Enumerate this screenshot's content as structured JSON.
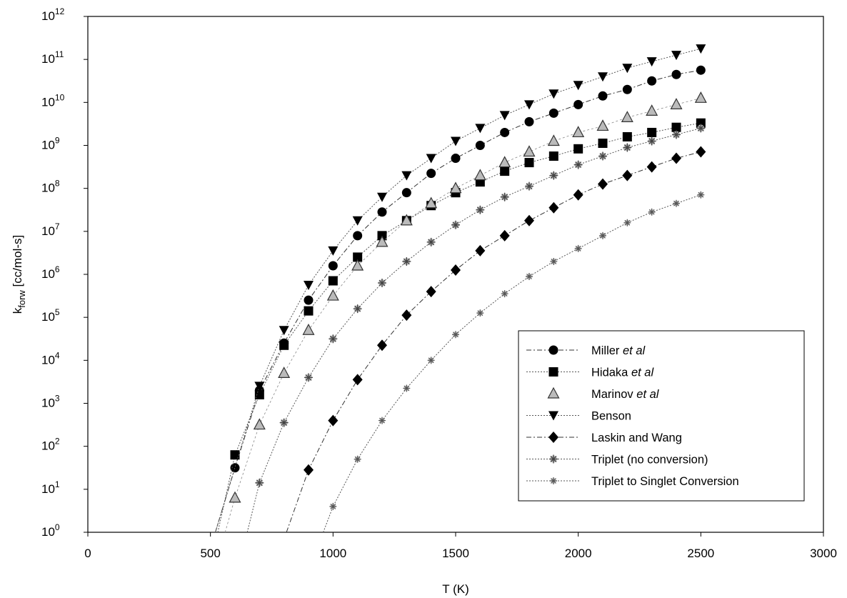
{
  "chart_data": {
    "type": "scatter",
    "title": "",
    "xlabel": "T (K)",
    "ylabel": {
      "main": "k",
      "sub": "forw",
      "unit": "[cc/mol-s]"
    },
    "xlim": [
      0,
      3000
    ],
    "ylim_log10": [
      0,
      12
    ],
    "y_scale": "log",
    "x_ticks": [
      "0",
      "500",
      "1000",
      "1500",
      "2000",
      "2500",
      "3000"
    ],
    "x_tick_values": [
      0,
      500,
      1000,
      1500,
      2000,
      2500,
      3000
    ],
    "y_ticks": [
      {
        "base": "10",
        "exp": "0"
      },
      {
        "base": "10",
        "exp": "1"
      },
      {
        "base": "10",
        "exp": "2"
      },
      {
        "base": "10",
        "exp": "3"
      },
      {
        "base": "10",
        "exp": "4"
      },
      {
        "base": "10",
        "exp": "5"
      },
      {
        "base": "10",
        "exp": "6"
      },
      {
        "base": "10",
        "exp": "7"
      },
      {
        "base": "10",
        "exp": "8"
      },
      {
        "base": "10",
        "exp": "9"
      },
      {
        "base": "10",
        "exp": "10"
      },
      {
        "base": "10",
        "exp": "11"
      },
      {
        "base": "10",
        "exp": "12"
      }
    ],
    "grid": false,
    "legend_position": "bottom-right",
    "series": [
      {
        "name": "Miller et al",
        "name_plain": "Miller ",
        "name_italic": "et al",
        "marker": "circle",
        "color": "#000000",
        "line": "dashdot",
        "curve_start_x": 520,
        "x": [
          600,
          700,
          800,
          900,
          1000,
          1100,
          1200,
          1300,
          1400,
          1500,
          1600,
          1700,
          1800,
          1900,
          2000,
          2100,
          2200,
          2300,
          2400,
          2500
        ],
        "log10_y": [
          1.5,
          3.3,
          4.4,
          5.4,
          6.2,
          6.9,
          7.45,
          7.9,
          8.35,
          8.7,
          9.0,
          9.3,
          9.55,
          9.75,
          9.95,
          10.15,
          10.3,
          10.5,
          10.65,
          10.75
        ]
      },
      {
        "name": "Hidaka et al",
        "name_plain": "Hidaka ",
        "name_italic": "et al",
        "marker": "square",
        "color": "#000000",
        "line": "dotted",
        "curve_start_x": 530,
        "x": [
          600,
          700,
          800,
          900,
          1000,
          1100,
          1200,
          1300,
          1400,
          1500,
          1600,
          1700,
          1800,
          1900,
          2000,
          2100,
          2200,
          2300,
          2400,
          2500
        ],
        "log10_y": [
          1.8,
          3.2,
          4.35,
          5.15,
          5.85,
          6.4,
          6.9,
          7.25,
          7.6,
          7.9,
          8.15,
          8.4,
          8.6,
          8.75,
          8.92,
          9.05,
          9.2,
          9.3,
          9.42,
          9.52
        ]
      },
      {
        "name": "Marinov et al",
        "name_plain": "Marinov ",
        "name_italic": "et al",
        "marker": "triangle-up",
        "color": "#777777",
        "line": "none",
        "curve_start_x": 560,
        "x": [
          600,
          700,
          800,
          900,
          1000,
          1100,
          1200,
          1300,
          1400,
          1500,
          1600,
          1700,
          1800,
          1900,
          2000,
          2100,
          2200,
          2300,
          2400,
          2500
        ],
        "log10_y": [
          0.8,
          2.5,
          3.7,
          4.7,
          5.5,
          6.2,
          6.75,
          7.25,
          7.65,
          8.0,
          8.3,
          8.6,
          8.85,
          9.1,
          9.3,
          9.45,
          9.65,
          9.8,
          9.95,
          10.1
        ]
      },
      {
        "name": "Benson",
        "marker": "triangle-down",
        "color": "#000000",
        "line": "dotted",
        "curve_start_x": 520,
        "x": [
          700,
          800,
          900,
          1000,
          1100,
          1200,
          1300,
          1400,
          1500,
          1600,
          1700,
          1800,
          1900,
          2000,
          2100,
          2200,
          2300,
          2400,
          2500
        ],
        "log10_y": [
          3.4,
          4.7,
          5.75,
          6.55,
          7.25,
          7.8,
          8.3,
          8.7,
          9.1,
          9.4,
          9.7,
          9.95,
          10.2,
          10.4,
          10.6,
          10.8,
          10.95,
          11.1,
          11.25
        ]
      },
      {
        "name": "Laskin and Wang",
        "marker": "diamond",
        "color": "#000000",
        "line": "dashdot",
        "curve_start_x": 810,
        "x": [
          900,
          1000,
          1100,
          1200,
          1300,
          1400,
          1500,
          1600,
          1700,
          1800,
          1900,
          2000,
          2100,
          2200,
          2300,
          2400,
          2500
        ],
        "log10_y": [
          1.45,
          2.6,
          3.55,
          4.35,
          5.05,
          5.6,
          6.1,
          6.55,
          6.9,
          7.25,
          7.55,
          7.85,
          8.1,
          8.3,
          8.5,
          8.7,
          8.85
        ]
      },
      {
        "name": "Triplet (no conversion)",
        "marker": "sparkle",
        "color": "#888888",
        "line": "dotted",
        "curve_start_x": 650,
        "x": [
          700,
          800,
          900,
          1000,
          1100,
          1200,
          1300,
          1400,
          1500,
          1600,
          1700,
          1800,
          1900,
          2000,
          2100,
          2200,
          2300,
          2400,
          2500
        ],
        "log10_y": [
          1.15,
          2.55,
          3.6,
          4.5,
          5.2,
          5.8,
          6.3,
          6.75,
          7.15,
          7.5,
          7.8,
          8.05,
          8.3,
          8.55,
          8.75,
          8.95,
          9.1,
          9.25,
          9.4
        ]
      },
      {
        "name": "Triplet to Singlet Conversion",
        "marker": "sparkle-small",
        "color": "#999999",
        "line": "dotted",
        "curve_start_x": 960,
        "x": [
          1000,
          1100,
          1200,
          1300,
          1400,
          1500,
          1600,
          1700,
          1800,
          1900,
          2000,
          2100,
          2200,
          2300,
          2400,
          2500
        ],
        "log10_y": [
          0.6,
          1.7,
          2.6,
          3.35,
          4.0,
          4.6,
          5.1,
          5.55,
          5.95,
          6.3,
          6.6,
          6.9,
          7.2,
          7.45,
          7.65,
          7.85
        ]
      }
    ]
  }
}
